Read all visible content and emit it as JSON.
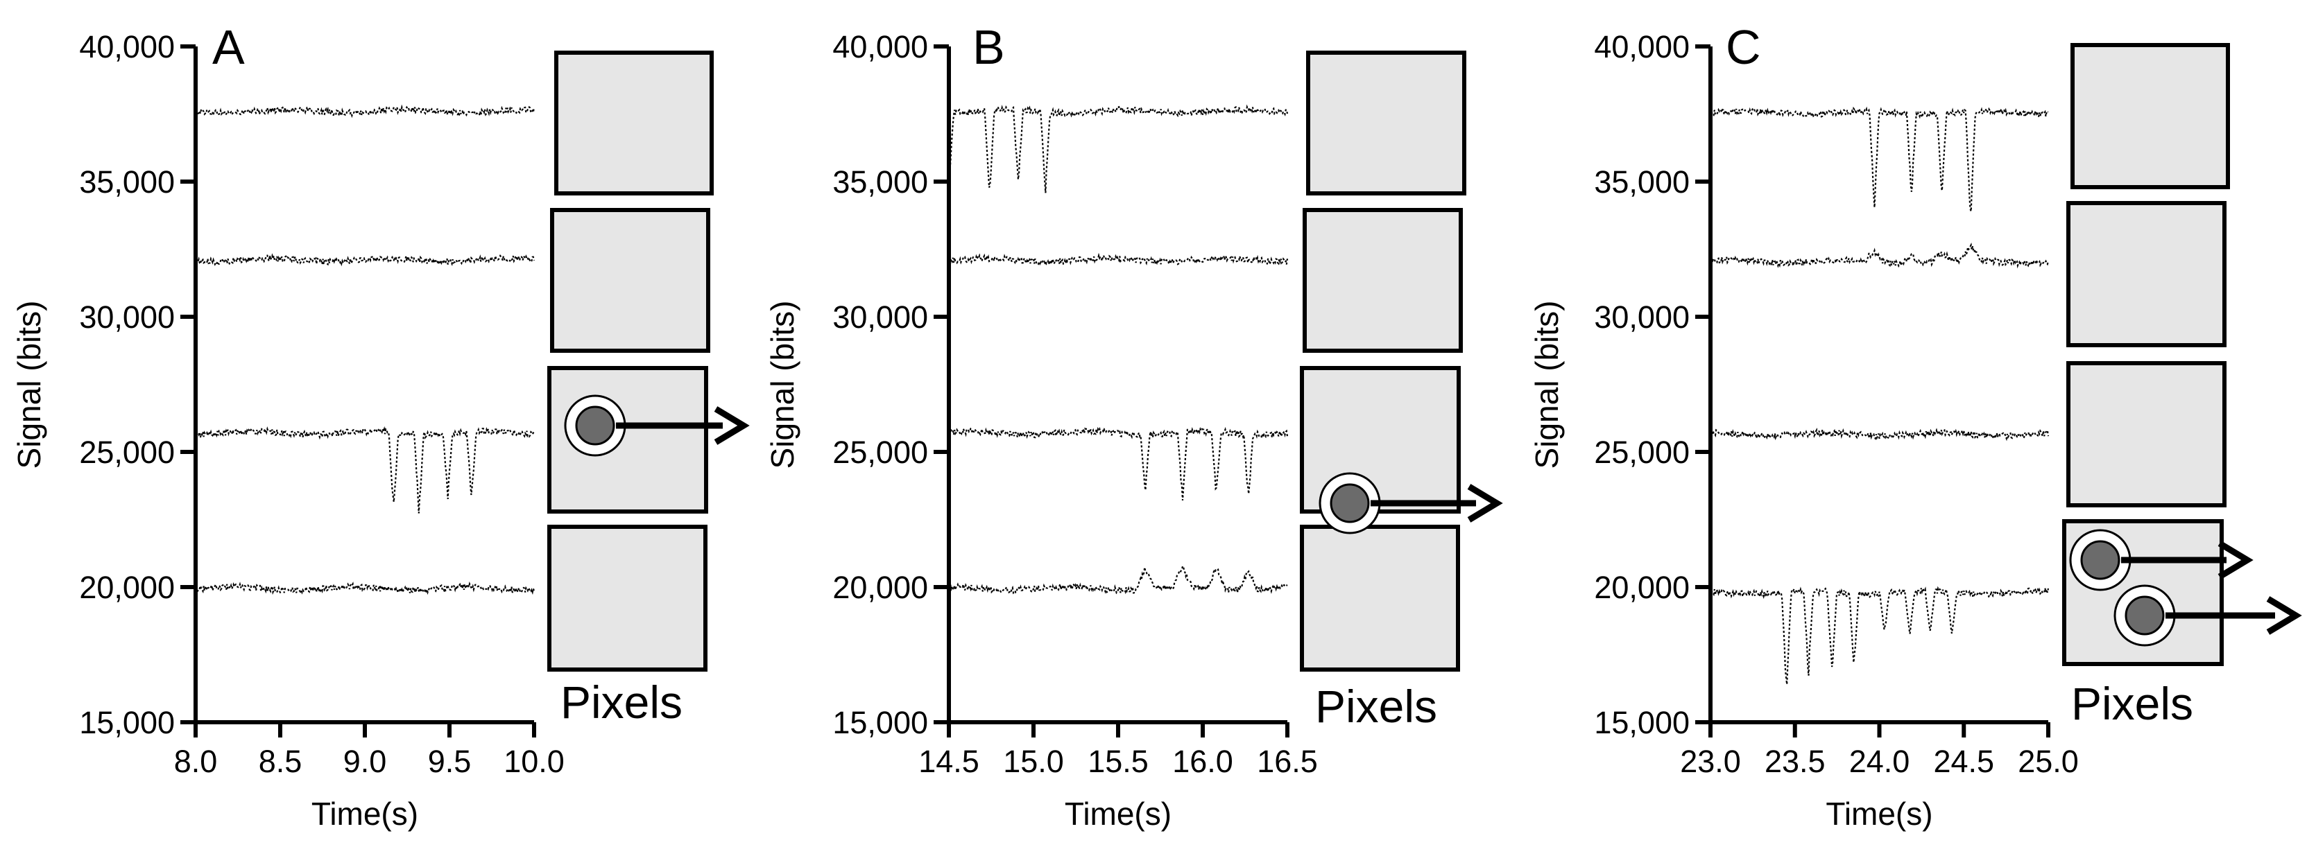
{
  "chart_data": [
    {
      "type": "line",
      "panel_label": "A",
      "xlabel": "Time(s)",
      "ylabel": "Signal (bits)",
      "xlim": [
        8.0,
        10.0
      ],
      "ylim": [
        15000,
        40000
      ],
      "x_tick_labels": [
        "8.0",
        "8.5",
        "9.0",
        "9.5",
        "10.0"
      ],
      "y_tick_labels": [
        "15,000",
        "20,000",
        "25,000",
        "30,000",
        "35,000",
        "40,000"
      ],
      "pixels_label": "Pixels",
      "series": [
        {
          "baseline": 37600,
          "dips": []
        },
        {
          "baseline": 32100,
          "dips": []
        },
        {
          "baseline": 25700,
          "dips": [
            {
              "x": 9.17,
              "min": 22600
            },
            {
              "x": 9.32,
              "min": 22500
            },
            {
              "x": 9.49,
              "min": 23200
            },
            {
              "x": 9.63,
              "min": 23100
            }
          ]
        },
        {
          "baseline": 19950,
          "dips": []
        }
      ]
    },
    {
      "type": "line",
      "panel_label": "B",
      "xlabel": "Time(s)",
      "ylabel": "Signal (bits)",
      "xlim": [
        14.5,
        16.5
      ],
      "ylim": [
        15000,
        40000
      ],
      "x_tick_labels": [
        "14.5",
        "15.0",
        "15.5",
        "16.0",
        "16.5"
      ],
      "y_tick_labels": [
        "15,000",
        "20,000",
        "25,000",
        "30,000",
        "35,000",
        "40,000"
      ],
      "pixels_label": "Pixels",
      "series": [
        {
          "baseline": 37600,
          "dips": [
            {
              "x": 14.5,
              "min": 34400
            },
            {
              "x": 14.74,
              "min": 34200
            },
            {
              "x": 14.91,
              "min": 34700
            },
            {
              "x": 15.07,
              "min": 34400
            }
          ]
        },
        {
          "baseline": 32100,
          "dips": []
        },
        {
          "baseline": 25700,
          "dips": [
            {
              "x": 15.66,
              "min": 23400
            },
            {
              "x": 15.88,
              "min": 23100
            },
            {
              "x": 16.08,
              "min": 23300
            },
            {
              "x": 16.27,
              "min": 23100
            }
          ]
        },
        {
          "baseline": 19950,
          "bumps": [
            {
              "x": 15.66,
              "max": 20700
            },
            {
              "x": 15.88,
              "max": 20700
            },
            {
              "x": 16.08,
              "max": 20700
            },
            {
              "x": 16.27,
              "max": 20700
            }
          ],
          "dips": []
        }
      ]
    },
    {
      "type": "line",
      "panel_label": "C",
      "xlabel": "Time(s)",
      "ylabel": "Signal (bits)",
      "xlim": [
        23.0,
        25.0
      ],
      "ylim": [
        15000,
        40000
      ],
      "x_tick_labels": [
        "23.0",
        "23.5",
        "24.0",
        "24.5",
        "25.0"
      ],
      "y_tick_labels": [
        "15,000",
        "20,000",
        "25,000",
        "30,000",
        "35,000",
        "40,000"
      ],
      "pixels_label": "Pixels",
      "series": [
        {
          "baseline": 37550,
          "dips": [
            {
              "x": 23.97,
              "min": 33800
            },
            {
              "x": 24.19,
              "min": 34300
            },
            {
              "x": 24.37,
              "min": 34400
            },
            {
              "x": 24.54,
              "min": 33300
            }
          ]
        },
        {
          "baseline": 32050,
          "bumps": [
            {
              "x": 23.97,
              "max": 32450
            },
            {
              "x": 24.19,
              "max": 32350
            },
            {
              "x": 24.37,
              "max": 32350
            },
            {
              "x": 24.54,
              "max": 32600
            }
          ],
          "dips": []
        },
        {
          "baseline": 25650,
          "dips": []
        },
        {
          "baseline": 19800,
          "dips": [
            {
              "x": 23.45,
              "min": 16000
            },
            {
              "x": 23.58,
              "min": 16600
            },
            {
              "x": 23.72,
              "min": 16600
            },
            {
              "x": 23.85,
              "min": 16900
            },
            {
              "x": 24.03,
              "min": 18200
            },
            {
              "x": 24.18,
              "min": 18100
            },
            {
              "x": 24.3,
              "min": 18200
            },
            {
              "x": 24.43,
              "min": 18100
            }
          ]
        }
      ]
    }
  ]
}
